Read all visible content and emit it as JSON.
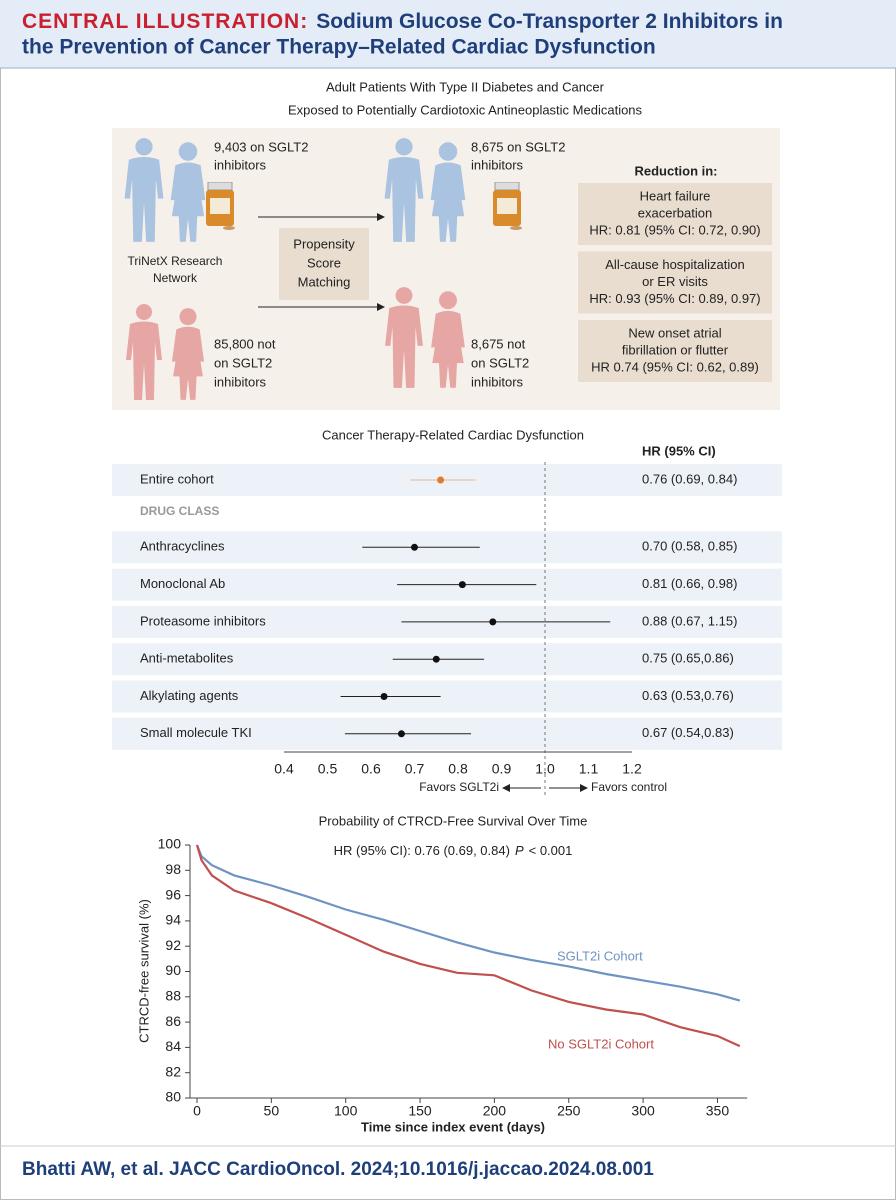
{
  "header": {
    "label": "CENTRAL ILLUSTRATION:",
    "title_lines": [
      "Sodium Glucose Co-Transporter 2 Inhibitors in",
      "the Prevention of Cancer Therapy–Related Cardiac Dysfunction"
    ]
  },
  "study": {
    "heading": [
      "Adult Patients With Type II Diabetes and Cancer",
      "Exposed to Potentially Cardiotoxic Antineoplastic Medications"
    ],
    "groups_before": [
      [
        "9,403 on SGLT2",
        "inhibitors"
      ],
      [
        "85,800 not",
        "on SGLT2",
        "inhibitors"
      ]
    ],
    "source": [
      "TriNetX Research",
      "Network"
    ],
    "matching": [
      "Propensity",
      "Score",
      "Matching"
    ],
    "groups_after": [
      [
        "8,675 on SGLT2",
        "inhibitors"
      ],
      [
        "8,675 not",
        "on SGLT2",
        "inhibitors"
      ]
    ],
    "reduction_title": "Reduction in:",
    "outcomes": [
      [
        "Heart failure",
        "exacerbation",
        "HR: 0.81 (95% CI: 0.72, 0.90)"
      ],
      [
        "All-cause hospitalization",
        "or ER visits",
        "HR: 0.93 (95% CI: 0.89, 0.97)"
      ],
      [
        "New onset atrial",
        "fibrillation or flutter",
        "HR 0.74 (95% CI: 0.62, 0.89)"
      ]
    ]
  },
  "chart_data": [
    {
      "type": "forest",
      "title": "Cancer Therapy-Related Cardiac Dysfunction",
      "column_header": "HR (95% CI)",
      "categories": [
        "Entire cohort",
        "Anthracyclines",
        "Monoclonal Ab",
        "Proteasome inhibitors",
        "Anti-metabolites",
        "Alkylating agents",
        "Small molecule TKI"
      ],
      "subheading": "DRUG CLASS",
      "values": [
        0.76,
        0.7,
        0.81,
        0.88,
        0.75,
        0.63,
        0.67
      ],
      "lower": [
        0.69,
        0.58,
        0.66,
        0.67,
        0.65,
        0.53,
        0.54
      ],
      "upper": [
        0.84,
        0.85,
        0.98,
        1.15,
        0.86,
        0.76,
        0.83
      ],
      "value_labels": [
        "0.76 (0.69, 0.84)",
        "0.70 (0.58, 0.85)",
        "0.81 (0.66, 0.98)",
        "0.88 (0.67, 1.15)",
        "0.75 (0.65,0.86)",
        "0.63 (0.53,0.76)",
        "0.67 (0.54,0.83)"
      ],
      "colors": [
        "#e07b2a",
        "#111111",
        "#111111",
        "#111111",
        "#111111",
        "#111111",
        "#111111"
      ],
      "xlim": [
        0.4,
        1.2
      ],
      "xticks": [
        0.4,
        0.5,
        0.6,
        0.7,
        0.8,
        0.9,
        {
          "value": 1,
          "label": "1.0"
        },
        1.1,
        1.2
      ],
      "reference_line": 1,
      "favors": [
        "Favors SGLT2i",
        "Favors control"
      ]
    },
    {
      "type": "line",
      "title": "Probability of CTRCD-Free Survival Over Time",
      "subtitle": [
        "HR (95% CI): 0.76 (0.69, 0.84)",
        "P",
        "< 0.001"
      ],
      "x": [
        0,
        3,
        10,
        25,
        50,
        75,
        100,
        125,
        150,
        175,
        200,
        225,
        250,
        275,
        300,
        325,
        350,
        365
      ],
      "series": [
        {
          "name": "SGLT2i Cohort",
          "color": "#6f93c2",
          "values": [
            100,
            99.1,
            98.4,
            97.6,
            96.8,
            95.9,
            94.9,
            94.1,
            93.2,
            92.3,
            91.5,
            90.9,
            90.4,
            89.8,
            89.3,
            88.8,
            88.2,
            87.7
          ]
        },
        {
          "name": "No SGLT2i Cohort",
          "color": "#c0504d",
          "values": [
            100,
            98.8,
            97.6,
            96.4,
            95.4,
            94.2,
            92.9,
            91.6,
            90.6,
            89.9,
            89.7,
            88.5,
            87.6,
            87.0,
            86.6,
            85.6,
            84.9,
            84.1
          ]
        }
      ],
      "xlim": [
        0,
        370
      ],
      "ylim": [
        80,
        100
      ],
      "xticks": [
        0,
        50,
        100,
        150,
        200,
        250,
        300,
        350
      ],
      "yticks": [
        80,
        82,
        84,
        86,
        88,
        90,
        92,
        94,
        96,
        98,
        100
      ],
      "xlabel": "Time since index event (days)",
      "ylabel": "CTRCD-free survival (%)"
    }
  ],
  "citation": "Bhatti AW, et al. JACC CardioOncol. 2024;10.1016/j.jaccao.2024.08.001"
}
